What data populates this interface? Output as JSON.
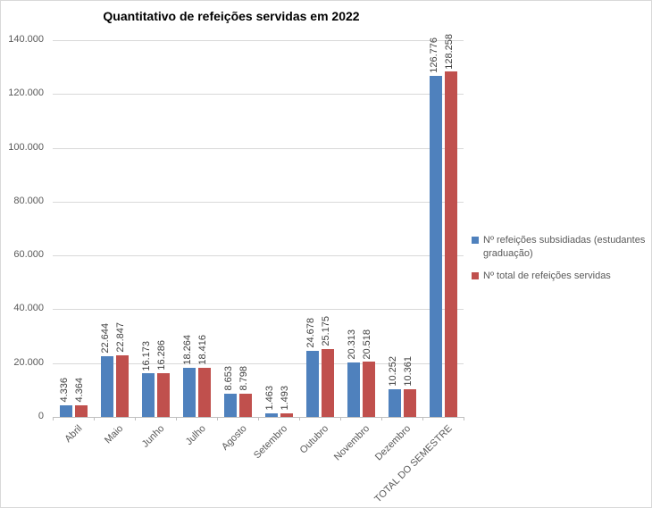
{
  "chart_data": {
    "type": "bar",
    "title": "Quantitativo de refeições servidas em 2022",
    "categories": [
      "Abril",
      "Maio",
      "Junho",
      "Julho",
      "Agosto",
      "Setembro",
      "Outubro",
      "Novembro",
      "Dezembro",
      "TOTAL DO SEMESTRE"
    ],
    "series": [
      {
        "name": "Nº refeições subsidiadas (estudantes graduação)",
        "color": "#4F81BD",
        "values": [
          4336,
          22644,
          16173,
          18264,
          8653,
          1463,
          24678,
          20313,
          10252,
          126776
        ]
      },
      {
        "name": "Nº total de refeições servidas",
        "color": "#C0504D",
        "values": [
          4364,
          22847,
          16286,
          18416,
          8798,
          1493,
          25175,
          20518,
          10361,
          128258
        ]
      }
    ],
    "ylim": [
      0,
      140000
    ],
    "ytick_step": 20000,
    "ytick_labels": [
      "0",
      "20.000",
      "40.000",
      "60.000",
      "80.000",
      "100.000",
      "120.000",
      "140.000"
    ],
    "grid": true,
    "legend_position": "right",
    "data_labels": true,
    "data_label_rotation": 90,
    "xlabel_rotation": 45,
    "number_format": "thousands-dot"
  },
  "colors": {
    "gridline": "#D9D9D9",
    "axis_line": "#BFBFBF",
    "axis_text": "#595959",
    "data_label_text": "#404040",
    "title_text": "#000000",
    "chart_border": "#D9D9D9",
    "background": "#FFFFFF"
  }
}
